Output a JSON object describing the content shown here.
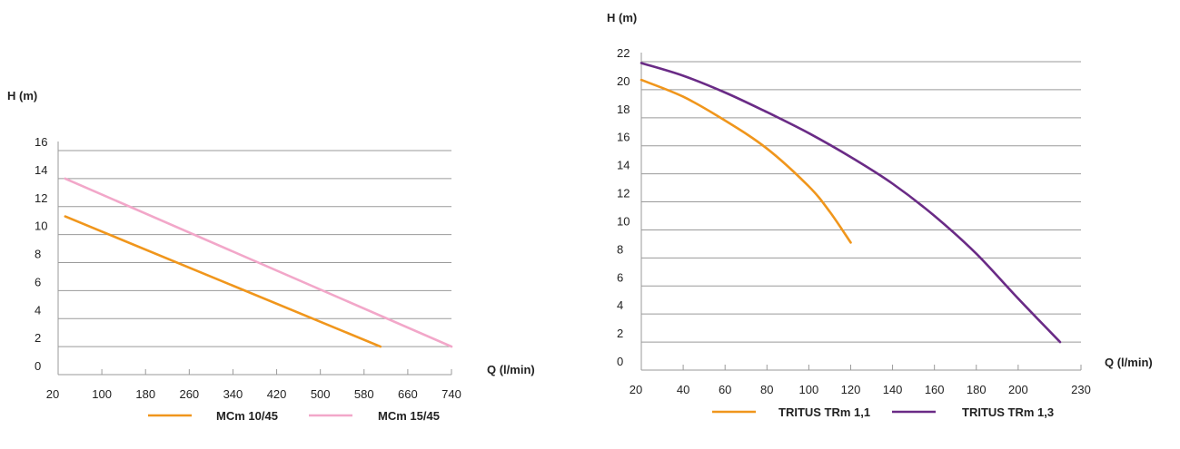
{
  "chart_data": [
    {
      "type": "line",
      "xlabel": "Q (l/min)",
      "ylabel": "H (m)",
      "xlim": [
        20,
        740
      ],
      "ylim": [
        0,
        16
      ],
      "x_ticks": [
        20,
        100,
        180,
        260,
        340,
        420,
        500,
        580,
        660,
        740
      ],
      "y_ticks": [
        0,
        2,
        4,
        6,
        8,
        10,
        12,
        14,
        16
      ],
      "grid": "horizontal",
      "legend_position": "bottom",
      "series": [
        {
          "name": "MCm 10/45",
          "color": "#f0961c",
          "points": [
            [
              33,
              11.3
            ],
            [
              610,
              2
            ]
          ]
        },
        {
          "name": "MCm 15/45",
          "color": "#f2a7c9",
          "points": [
            [
              33,
              14
            ],
            [
              740,
              2
            ]
          ]
        }
      ]
    },
    {
      "type": "line",
      "xlabel": "Q (l/min)",
      "ylabel": "H (m)",
      "xlim": [
        20,
        230
      ],
      "ylim": [
        0,
        22
      ],
      "x_ticks": [
        20,
        40,
        60,
        80,
        100,
        120,
        140,
        160,
        180,
        200,
        230
      ],
      "y_ticks": [
        0,
        2,
        4,
        6,
        8,
        10,
        12,
        14,
        16,
        18,
        20,
        22
      ],
      "grid": "horizontal",
      "legend_position": "bottom",
      "series": [
        {
          "name": "TRITUS TRm 1,1",
          "color": "#f0961c",
          "points": [
            [
              20,
              20.7
            ],
            [
              40,
              19.5
            ],
            [
              60,
              17.8
            ],
            [
              80,
              15.8
            ],
            [
              100,
              13.1
            ],
            [
              110,
              11.3
            ],
            [
              120,
              9.1
            ]
          ]
        },
        {
          "name": "TRITUS TRm 1,3",
          "color": "#6a2b86",
          "points": [
            [
              20,
              21.9
            ],
            [
              40,
              21.0
            ],
            [
              60,
              19.8
            ],
            [
              80,
              18.4
            ],
            [
              100,
              16.9
            ],
            [
              120,
              15.2
            ],
            [
              140,
              13.3
            ],
            [
              160,
              11.0
            ],
            [
              180,
              8.3
            ],
            [
              200,
              5.1
            ],
            [
              220,
              2.0
            ]
          ]
        }
      ]
    }
  ]
}
